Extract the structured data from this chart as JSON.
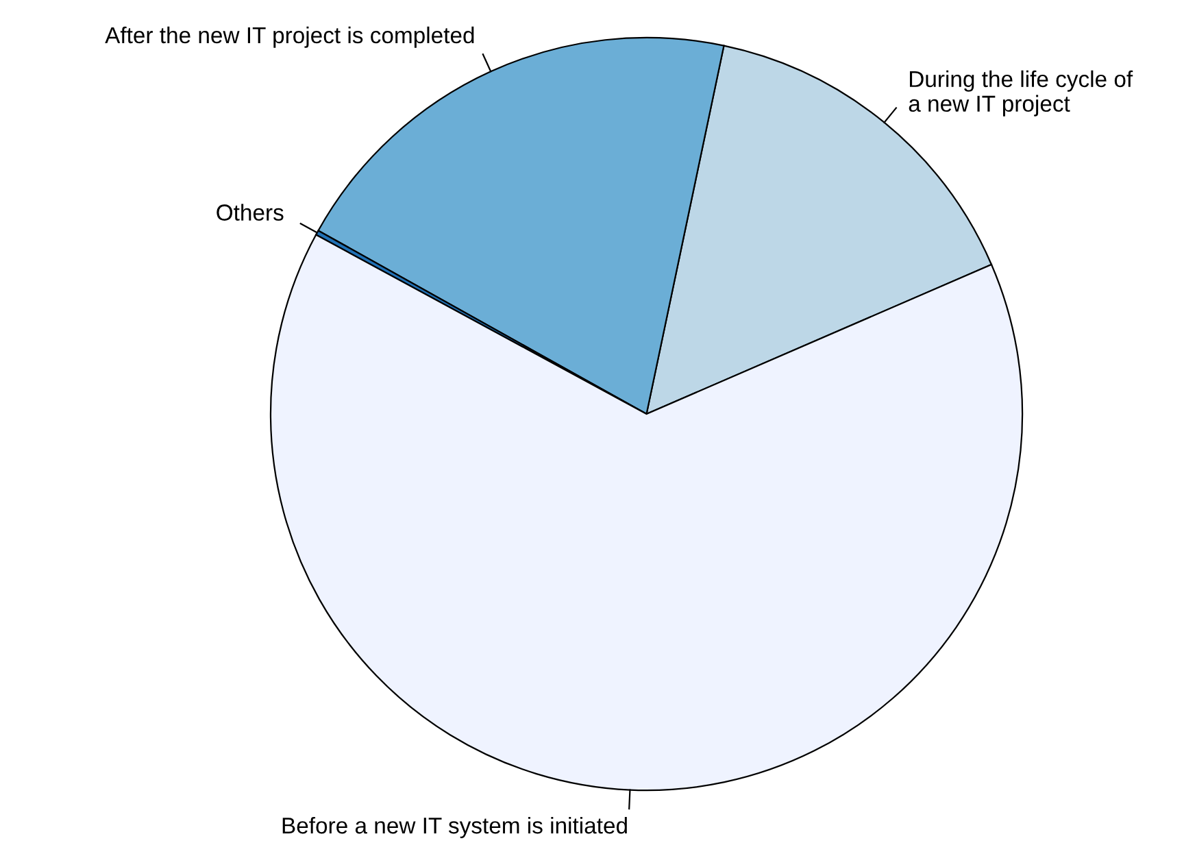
{
  "chart_data": {
    "type": "pie",
    "categories": [
      "During the life cycle of\na new IT project",
      "After the new IT project is completed",
      "Others",
      "Before a new IT system is initiated"
    ],
    "values": [
      15.2,
      20.2,
      0.2,
      64.4
    ],
    "colors": [
      "#bdd7e7",
      "#6baed6",
      "#2171b5",
      "#eff3ff"
    ]
  }
}
